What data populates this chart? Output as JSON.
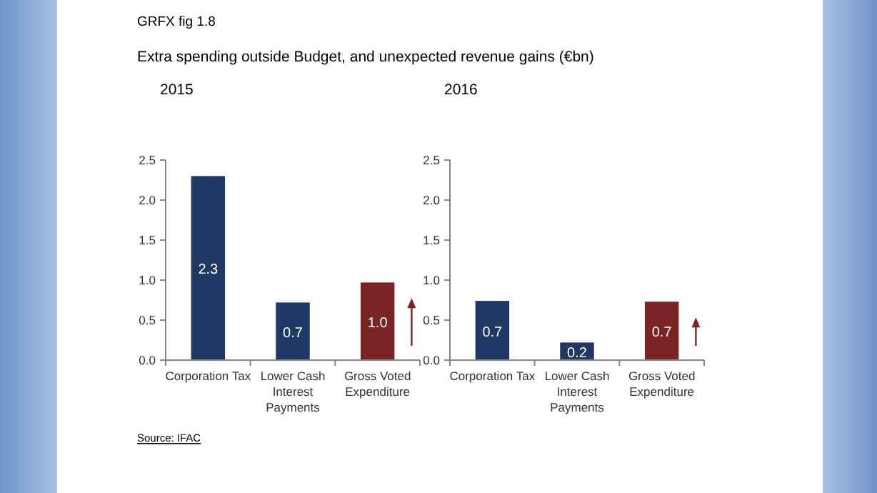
{
  "chart_data": [
    {
      "type": "bar",
      "title": "2015",
      "annotations": [
        "GRFX fig 1.8",
        "Extra spending outside Budget, and unexpected revenue gains (€bn)",
        "Source: IFAC"
      ],
      "categories": [
        "Corporation Tax",
        "Lower Cash Interest Payments",
        "Gross Voted Expenditure"
      ],
      "values": [
        2.3,
        0.72,
        0.97
      ],
      "value_labels": [
        "2.3",
        "0.7",
        "1.0"
      ],
      "colors": [
        "#1f3864",
        "#1f3864",
        "#7b2425"
      ],
      "ylim": [
        0,
        2.5
      ],
      "yticks": [
        {
          "value": 0,
          "label": "0.0"
        },
        {
          "value": 0.5,
          "label": "0.5"
        },
        {
          "value": 1,
          "label": "1.0"
        },
        {
          "value": 1.5,
          "label": "1.5"
        },
        {
          "value": 2,
          "label": "2.0"
        },
        {
          "value": 2.5,
          "label": "2.5"
        }
      ],
      "grid": false
    },
    {
      "type": "bar",
      "title": "2016",
      "categories": [
        "Corporation Tax",
        "Lower Cash Interest Payments",
        "Gross Voted Expenditure"
      ],
      "values": [
        0.74,
        0.22,
        0.73
      ],
      "value_labels": [
        "0.7",
        "0.2",
        "0.7"
      ],
      "colors": [
        "#1f3864",
        "#1f3864",
        "#7b2425"
      ],
      "ylim": [
        0,
        2.5
      ],
      "yticks": [
        {
          "value": 0,
          "label": "0.0"
        },
        {
          "value": 0.5,
          "label": "0.5"
        },
        {
          "value": 1,
          "label": "1.0"
        },
        {
          "value": 1.5,
          "label": "1.5"
        },
        {
          "value": 2,
          "label": "2.0"
        },
        {
          "value": 2.5,
          "label": "2.5"
        }
      ],
      "grid": false
    }
  ]
}
